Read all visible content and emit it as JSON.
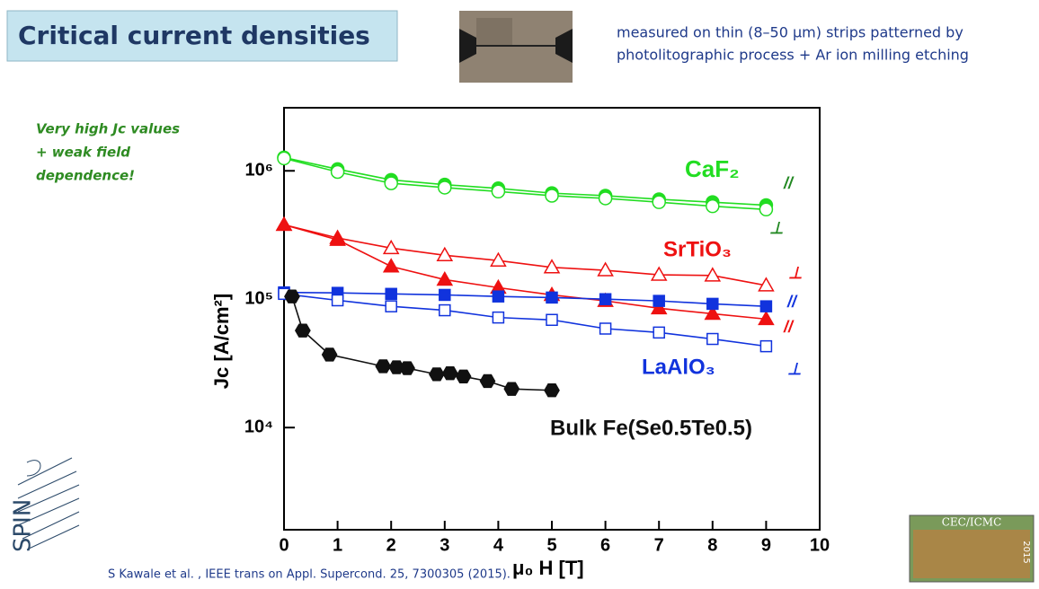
{
  "slide": {
    "title": "Critical current densities",
    "description": [
      "measured on thin (8–50 μm) strips patterned by",
      "photolitographic process + Ar ion milling etching"
    ],
    "note": [
      "Very high Jc values",
      "+ weak field",
      "dependence!"
    ],
    "reference": "S Kawale et al. , IEEE trans on Appl. Supercond. 25, 7300305 (2015).",
    "logo_left": "SPIN",
    "logo_right": [
      "CEC/ICMC",
      "2015"
    ]
  },
  "chart_data": {
    "type": "line",
    "xlabel": "μ₀ H [T]",
    "ylabel": "Jc [A/cm²]",
    "xlim": [
      0,
      10
    ],
    "xticks": [
      0,
      1,
      2,
      3,
      4,
      5,
      6,
      7,
      8,
      9,
      10
    ],
    "ylim": [
      1600,
      3100000
    ],
    "log_y": true,
    "yticks": [
      {
        "value": 10000,
        "label": "10⁴"
      },
      {
        "value": 100000,
        "label": "10⁵"
      },
      {
        "value": 1000000,
        "label": "10⁶"
      }
    ],
    "series": [
      {
        "color": "#22dd22",
        "marker": "circle",
        "filled": true,
        "x": [
          0,
          1,
          2,
          3,
          4,
          5,
          6,
          7,
          8,
          9
        ],
        "values": [
          1270000,
          1030000,
          850000,
          780000,
          730000,
          670000,
          640000,
          600000,
          570000,
          540000
        ]
      },
      {
        "color": "#22dd22",
        "marker": "circle",
        "filled": false,
        "x": [
          0,
          1,
          2,
          3,
          4,
          5,
          6,
          7,
          8,
          9
        ],
        "values": [
          1250000,
          980000,
          800000,
          740000,
          690000,
          640000,
          610000,
          570000,
          530000,
          500000
        ]
      },
      {
        "color": "#ee1111",
        "marker": "triangle",
        "filled": false,
        "x": [
          0,
          1,
          2,
          3,
          4,
          5,
          6,
          7,
          8,
          9
        ],
        "values": [
          380000,
          300000,
          250000,
          220000,
          200000,
          177000,
          168000,
          155000,
          153000,
          128000
        ]
      },
      {
        "color": "#ee1111",
        "marker": "triangle",
        "filled": true,
        "x": [
          0,
          1,
          2,
          3,
          4,
          5,
          6,
          7,
          8,
          9
        ],
        "values": [
          380000,
          290000,
          180000,
          142000,
          123000,
          108000,
          97000,
          85000,
          77000,
          70000
        ]
      },
      {
        "color": "#1133dd",
        "marker": "square",
        "filled": true,
        "x": [
          0,
          1,
          2,
          3,
          4,
          5,
          6,
          7,
          8,
          9
        ],
        "values": [
          113000,
          112000,
          110000,
          108000,
          105000,
          103000,
          100000,
          97000,
          92000,
          88000
        ]
      },
      {
        "color": "#1133dd",
        "marker": "square",
        "filled": false,
        "x": [
          0,
          1,
          2,
          3,
          4,
          5,
          6,
          7,
          8,
          9
        ],
        "values": [
          110000,
          98000,
          88000,
          82000,
          72000,
          69000,
          59000,
          55000,
          49000,
          43000
        ]
      },
      {
        "color": "#111111",
        "marker": "hexagon",
        "filled": true,
        "x": [
          0.15,
          0.35,
          0.85,
          1.85,
          2.1,
          2.3,
          2.85,
          3.1,
          3.35,
          3.8,
          4.25,
          5
        ],
        "values": [
          105000,
          57000,
          37000,
          30000,
          29500,
          29000,
          26000,
          26500,
          25000,
          23000,
          20000,
          19500
        ]
      }
    ],
    "annotations": [
      {
        "text": "CaF₂",
        "color": "#22dd22"
      },
      {
        "text": "//",
        "color": "#228822"
      },
      {
        "text": "⊥",
        "color": "#228822"
      },
      {
        "text": "SrTiO₃",
        "color": "#ee1111"
      },
      {
        "text": "⊥",
        "color": "#ee1111"
      },
      {
        "text": "//",
        "color": "#ee1111"
      },
      {
        "text": "//",
        "color": "#1133dd"
      },
      {
        "text": "LaAlO₃",
        "color": "#1133dd"
      },
      {
        "text": "⊥",
        "color": "#1133dd"
      },
      {
        "text": "Bulk Fe(Se0.5Te0.5)",
        "color": "#111111"
      }
    ]
  }
}
